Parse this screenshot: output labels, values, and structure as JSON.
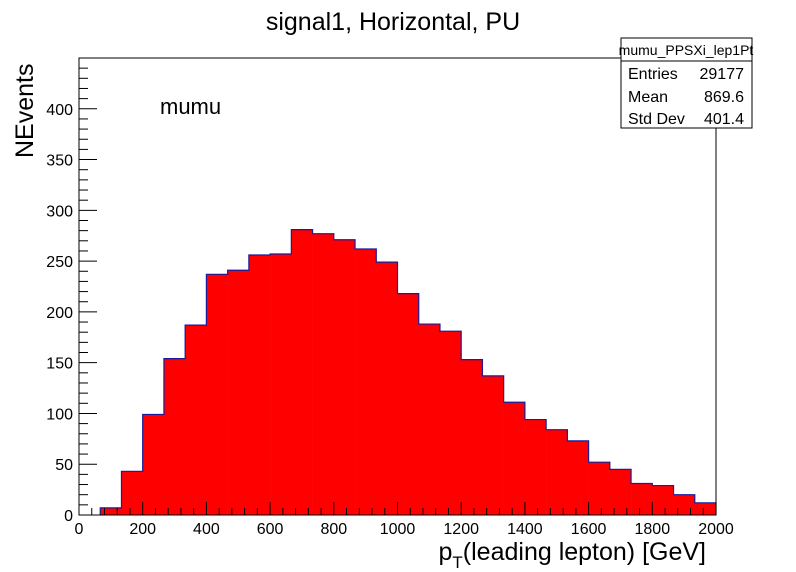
{
  "chart_data": {
    "type": "bar",
    "title": "signal1, Horizontal, PU",
    "ylabel": "NEvents",
    "xlabel": {
      "p": "p",
      "sub": "T",
      "rest": "(leading lepton) [GeV]"
    },
    "annotation": "mumu",
    "xlim": [
      0,
      2000
    ],
    "ylim": [
      0,
      450
    ],
    "bin_width": 66.667,
    "bins_x": [
      66.7,
      133.3,
      200.0,
      266.7,
      333.3,
      400.0,
      466.7,
      533.3,
      600.0,
      666.7,
      733.3,
      800.0,
      866.7,
      933.3,
      1000.0,
      1066.7,
      1133.3,
      1200.0,
      1266.7,
      1333.3,
      1400.0,
      1466.7,
      1533.3,
      1600.0,
      1666.7,
      1733.3,
      1800.0,
      1866.7,
      1933.3
    ],
    "values": [
      7,
      43,
      99,
      154,
      187,
      237,
      241,
      256,
      257,
      281,
      277,
      271,
      262,
      249,
      218,
      188,
      181,
      153,
      137,
      111,
      94,
      84,
      73,
      52,
      45,
      31,
      29,
      20,
      12
    ],
    "x_ticks": [
      0,
      200,
      400,
      600,
      800,
      1000,
      1200,
      1400,
      1600,
      1800,
      2000
    ],
    "y_ticks": [
      0,
      50,
      100,
      150,
      200,
      250,
      300,
      350,
      400
    ],
    "fill_color": "#ff0000",
    "line_color": "#1a1a9a",
    "stats": {
      "name": "mumu_PPSXi_lep1Pt",
      "rows": [
        {
          "label": "Entries",
          "value": "29177"
        },
        {
          "label": "Mean",
          "value": "869.6"
        },
        {
          "label": "Std Dev",
          "value": "401.4"
        }
      ]
    }
  }
}
